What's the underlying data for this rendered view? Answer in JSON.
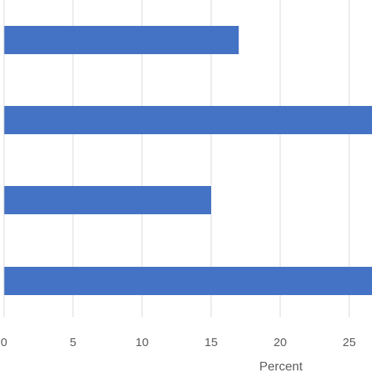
{
  "chart_data": {
    "type": "bar",
    "orientation": "horizontal",
    "values": [
      17,
      27,
      15,
      27
    ],
    "xlabel": "Percent",
    "xlim": [
      0,
      27
    ],
    "xticks": [
      0,
      5,
      10,
      15,
      20,
      25
    ],
    "xtick_labels": [
      "0",
      "5",
      "10",
      "15",
      "20",
      "25"
    ],
    "grid": "vertical",
    "bar_color": "#4472C4",
    "grid_color": "#D9D9D9",
    "text_color": "#595959"
  }
}
